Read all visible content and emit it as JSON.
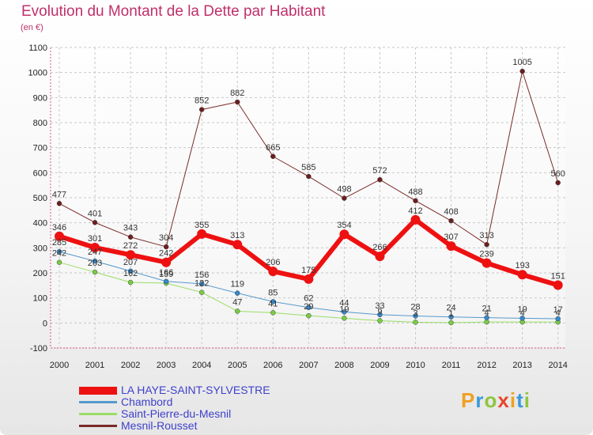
{
  "header": {
    "title": "Evolution du Montant de la Dette par Habitant",
    "unit": "(en €)"
  },
  "logo": {
    "text": "Proxiti",
    "colors": [
      "#f0a020",
      "#3a9ad9",
      "#8cc63f",
      "#e8452c",
      "#f0a020",
      "#3a9ad9",
      "#8cc63f"
    ]
  },
  "chart_data": {
    "type": "line",
    "title": "Evolution du Montant de la Dette par Habitant",
    "ylabel": "(en €)",
    "x": [
      "2000",
      "2001",
      "2002",
      "2003",
      "2004",
      "2005",
      "2006",
      "2007",
      "2008",
      "2009",
      "2010",
      "2011",
      "2012",
      "2013",
      "2014"
    ],
    "ylim": [
      -100,
      1100
    ],
    "yticks": [
      -100,
      0,
      100,
      200,
      300,
      400,
      500,
      600,
      700,
      800,
      900,
      1000,
      1100
    ],
    "grid": true,
    "legend_position": "bottom-left",
    "series": [
      {
        "name": "Mesnil-Rousset",
        "color": "#7a2a2a",
        "marker": "#6b1e1e",
        "width": 1,
        "values": [
          477,
          401,
          343,
          304,
          852,
          882,
          665,
          585,
          498,
          572,
          488,
          408,
          313,
          1005,
          560
        ]
      },
      {
        "name": "Saint-Pierre-du-Mesnil",
        "color": "#99dd66",
        "marker": "#77cc44",
        "width": 1,
        "values": [
          242,
          203,
          162,
          159,
          122,
          47,
          41,
          29,
          19,
          9,
          3,
          1,
          4,
          4,
          4
        ]
      },
      {
        "name": "Chambord",
        "color": "#5599cc",
        "marker": "#3388cc",
        "width": 1,
        "values": [
          285,
          247,
          207,
          166,
          156,
          119,
          85,
          62,
          44,
          33,
          28,
          24,
          21,
          19,
          17
        ]
      },
      {
        "name": "LA HAYE-SAINT-SYLVESTRE",
        "color": "#ee1111",
        "marker": "#ee1111",
        "width": 6,
        "values": [
          346,
          301,
          272,
          242,
          355,
          313,
          206,
          175,
          354,
          266,
          412,
          307,
          239,
          193,
          151
        ]
      }
    ],
    "label_colors": {
      "default": "#333333"
    }
  }
}
